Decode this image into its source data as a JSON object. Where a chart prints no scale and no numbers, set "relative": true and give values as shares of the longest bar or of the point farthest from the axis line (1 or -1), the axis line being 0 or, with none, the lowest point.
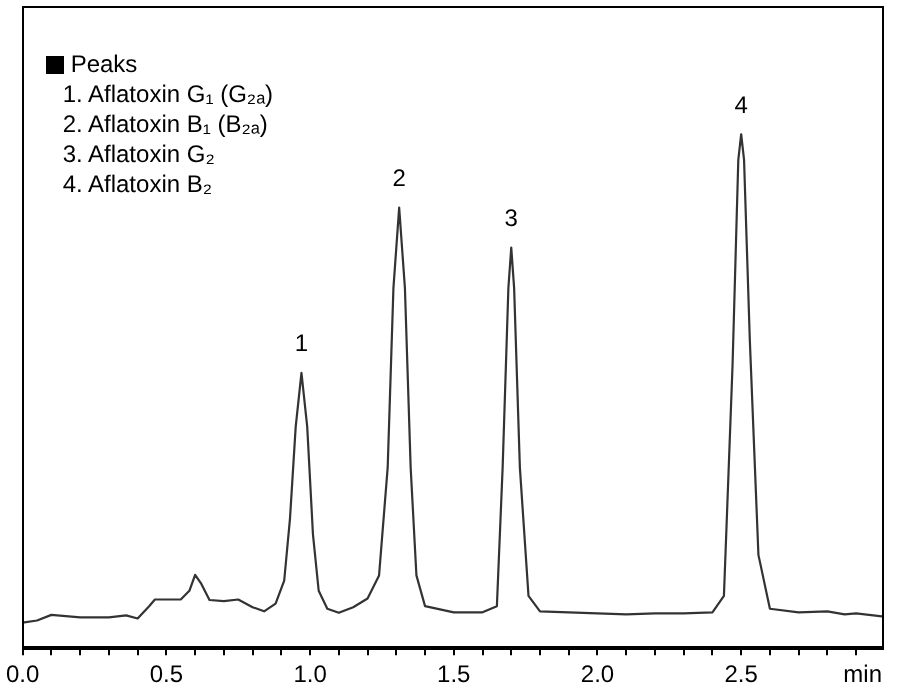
{
  "chart_data": {
    "type": "line",
    "relative": true,
    "xlabel": "min",
    "marker": "none",
    "line_style": "solid",
    "legend": false,
    "grid": false,
    "tick_labels": "x",
    "xlim": [
      0,
      2.99
    ],
    "xticks": [
      {
        "value": 0,
        "label": "0.0"
      },
      {
        "value": 0.1,
        "label": null
      },
      {
        "value": 0.2,
        "label": null
      },
      {
        "value": 0.3,
        "label": null
      },
      {
        "value": 0.4,
        "label": null
      },
      {
        "value": 0.5,
        "label": "0.5"
      },
      {
        "value": 0.6,
        "label": null
      },
      {
        "value": 0.7,
        "label": null
      },
      {
        "value": 0.8,
        "label": null
      },
      {
        "value": 0.9,
        "label": null
      },
      {
        "value": 1,
        "label": "1.0"
      },
      {
        "value": 1.1,
        "label": null
      },
      {
        "value": 1.2,
        "label": null
      },
      {
        "value": 1.3,
        "label": null
      },
      {
        "value": 1.4,
        "label": null
      },
      {
        "value": 1.5,
        "label": "1.5"
      },
      {
        "value": 1.6,
        "label": null
      },
      {
        "value": 1.7,
        "label": null
      },
      {
        "value": 1.8,
        "label": null
      },
      {
        "value": 1.9,
        "label": null
      },
      {
        "value": 2,
        "label": "2.0"
      },
      {
        "value": 2.1,
        "label": null
      },
      {
        "value": 2.2,
        "label": null
      },
      {
        "value": 2.3,
        "label": null
      },
      {
        "value": 2.4,
        "label": null
      },
      {
        "value": 2.5,
        "label": "2.5"
      },
      {
        "value": 2.6,
        "label": null
      },
      {
        "value": 2.7,
        "label": null
      },
      {
        "value": 2.8,
        "label": null
      },
      {
        "value": 2.9,
        "label": null
      }
    ],
    "annotations": [
      "Peaks",
      "1. Aflatoxin G₁ (G₂ₐ)",
      "2. Aflatoxin B₁ (B₂ₐ)",
      "3. Aflatoxin G₂",
      "4. Aflatoxin B₂",
      {
        "text": "1",
        "x": 0.97,
        "y": 0.535
      },
      {
        "text": "2",
        "x": 1.31,
        "y": 0.857
      },
      {
        "text": "3",
        "x": 1.7,
        "y": 0.779
      },
      {
        "text": "4",
        "x": 2.5,
        "y": 1
      }
    ],
    "series": [
      {
        "color": "#333333",
        "x": [
          0,
          0.05,
          0.1,
          0.2,
          0.3,
          0.36,
          0.4,
          0.44,
          0.46,
          0.55,
          0.58,
          0.6,
          0.62,
          0.65,
          0.7,
          0.75,
          0.8,
          0.84,
          0.88,
          0.91,
          0.93,
          0.95,
          0.97,
          0.99,
          1.01,
          1.03,
          1.06,
          1.1,
          1.15,
          1.2,
          1.24,
          1.27,
          1.29,
          1.31,
          1.33,
          1.35,
          1.37,
          1.4,
          1.5,
          1.6,
          1.65,
          1.67,
          1.69,
          1.7,
          1.71,
          1.73,
          1.76,
          1.8,
          1.9,
          2,
          2.1,
          2.2,
          2.3,
          2.4,
          2.44,
          2.47,
          2.49,
          2.5,
          2.51,
          2.53,
          2.56,
          2.6,
          2.7,
          2.8,
          2.86,
          2.9,
          2.99
        ],
        "values": [
          0.048,
          0.052,
          0.063,
          0.058,
          0.058,
          0.062,
          0.056,
          0.08,
          0.093,
          0.093,
          0.11,
          0.141,
          0.125,
          0.092,
          0.09,
          0.093,
          0.078,
          0.07,
          0.085,
          0.13,
          0.25,
          0.43,
          0.535,
          0.43,
          0.22,
          0.11,
          0.075,
          0.067,
          0.078,
          0.095,
          0.14,
          0.35,
          0.7,
          0.857,
          0.7,
          0.35,
          0.14,
          0.08,
          0.068,
          0.068,
          0.08,
          0.35,
          0.7,
          0.779,
          0.7,
          0.35,
          0.1,
          0.07,
          0.068,
          0.066,
          0.064,
          0.066,
          0.066,
          0.068,
          0.1,
          0.55,
          0.95,
          1,
          0.95,
          0.6,
          0.18,
          0.075,
          0.068,
          0.07,
          0.064,
          0.066,
          0.06
        ]
      }
    ]
  }
}
